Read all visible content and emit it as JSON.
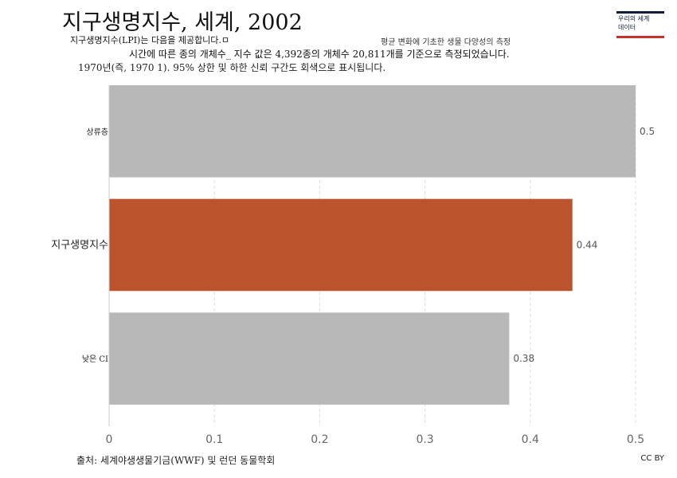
{
  "header": {
    "title": "지구생명지수, 세계, 2002",
    "subtitle_line1": "지구생명지수(LPI)는 다음을 제공합니다.ㅁ",
    "subtitle_line1_right": "평균 변화에 기초한 생물 다양성의 측정",
    "subtitle_line2": "시간에 따른 종의 개체수_ 지수 값은 4,392종의 개체수 20,811개를 기준으로 측정되었습니다.",
    "subtitle_line3": "1970년(즉, 1970 1). 95% 상한 및 하한 신뢰 구간도 회색으로 표시됩니다."
  },
  "logo": {
    "line1": "우리의 세계",
    "line2": "데이터"
  },
  "footer": {
    "source": "출처: 세계야생생물기금(WWF) 및 런던 동물학회",
    "license": "CC BY"
  },
  "chart_data": {
    "type": "bar",
    "orientation": "horizontal",
    "categories": [
      "상류층",
      "지구생명지수",
      "낮은 CI"
    ],
    "values": [
      0.5,
      0.44,
      0.38
    ],
    "value_labels": [
      "0.5",
      "0.44",
      "0.38"
    ],
    "colors": [
      "#b8b8b8",
      "#bb532d",
      "#b8b8b8"
    ],
    "xlim": [
      0,
      0.5
    ],
    "xticks": [
      0,
      0.1,
      0.2,
      0.3,
      0.4,
      0.5
    ],
    "xtick_labels": [
      "0",
      "0.1",
      "0.2",
      "0.3",
      "0.4",
      "0.5"
    ],
    "grid": true
  }
}
